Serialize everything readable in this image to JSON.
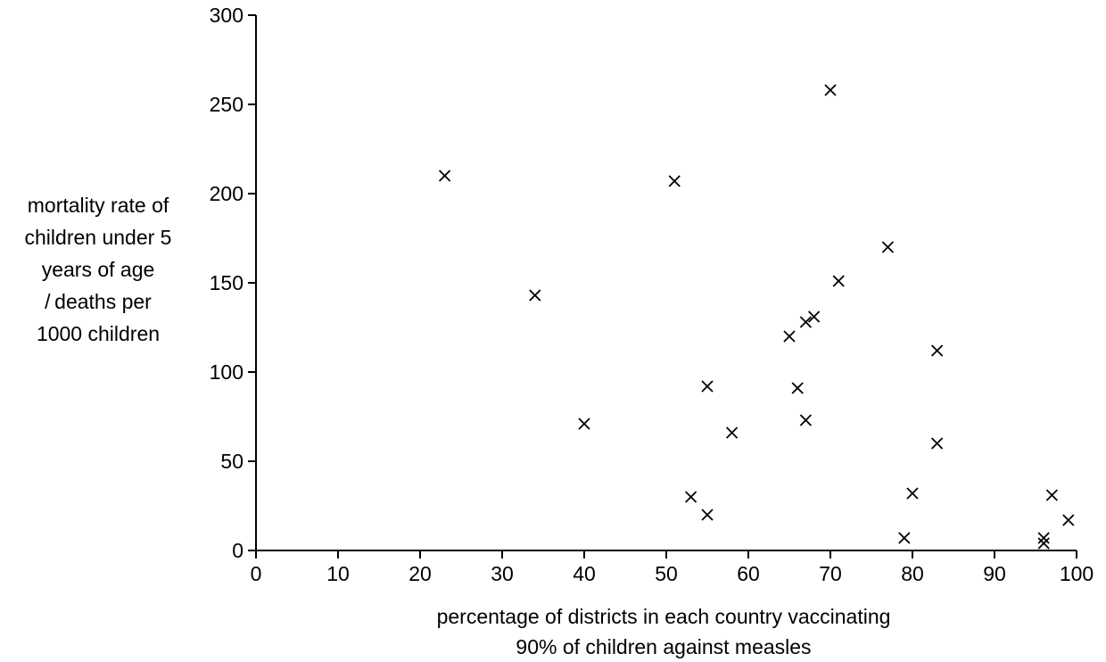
{
  "chart_data": {
    "type": "scatter",
    "title": "",
    "xlabel_lines": [
      "percentage of districts in each country vaccinating",
      "90% of children against measles"
    ],
    "ylabel_lines": [
      "mortality rate of",
      "children under 5",
      "years of age",
      "/ deaths per",
      "1000 children"
    ],
    "xlim": [
      0,
      100
    ],
    "ylim": [
      0,
      300
    ],
    "xticks": [
      0,
      10,
      20,
      30,
      40,
      50,
      60,
      70,
      80,
      90,
      100
    ],
    "yticks": [
      0,
      50,
      100,
      150,
      200,
      250,
      300
    ],
    "marker": "x",
    "grid": false,
    "points": [
      {
        "x": 23,
        "y": 210
      },
      {
        "x": 34,
        "y": 143
      },
      {
        "x": 40,
        "y": 71
      },
      {
        "x": 51,
        "y": 207
      },
      {
        "x": 53,
        "y": 30
      },
      {
        "x": 55,
        "y": 92
      },
      {
        "x": 55,
        "y": 20
      },
      {
        "x": 58,
        "y": 66
      },
      {
        "x": 65,
        "y": 120
      },
      {
        "x": 66,
        "y": 91
      },
      {
        "x": 67,
        "y": 128
      },
      {
        "x": 67,
        "y": 73
      },
      {
        "x": 68,
        "y": 131
      },
      {
        "x": 70,
        "y": 258
      },
      {
        "x": 71,
        "y": 151
      },
      {
        "x": 77,
        "y": 170
      },
      {
        "x": 79,
        "y": 7
      },
      {
        "x": 80,
        "y": 32
      },
      {
        "x": 83,
        "y": 112
      },
      {
        "x": 83,
        "y": 60
      },
      {
        "x": 96,
        "y": 7
      },
      {
        "x": 96,
        "y": 4
      },
      {
        "x": 97,
        "y": 31
      },
      {
        "x": 99,
        "y": 17
      }
    ]
  }
}
